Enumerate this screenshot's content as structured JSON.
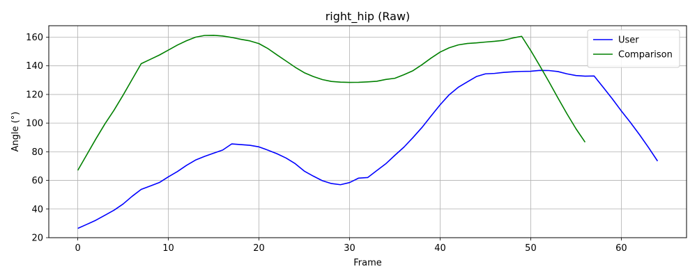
{
  "chart_data": {
    "type": "line",
    "title": "right_hip (Raw)",
    "xlabel": "Frame",
    "ylabel": "Angle (°)",
    "xlim": [
      -3.2,
      67.2
    ],
    "ylim": [
      20,
      168
    ],
    "xticks": [
      0,
      10,
      20,
      30,
      40,
      50,
      60
    ],
    "yticks": [
      20,
      40,
      60,
      80,
      100,
      120,
      140,
      160
    ],
    "grid": true,
    "legend_position": "top-right",
    "series": [
      {
        "name": "User",
        "color": "#0000ff",
        "x": [
          0,
          1,
          2,
          3,
          4,
          5,
          6,
          7,
          8,
          9,
          10,
          11,
          12,
          13,
          14,
          15,
          16,
          17,
          18,
          19,
          20,
          21,
          22,
          23,
          24,
          25,
          26,
          27,
          28,
          29,
          30,
          31,
          32,
          33,
          34,
          35,
          36,
          37,
          38,
          39,
          40,
          41,
          42,
          43,
          44,
          45,
          46,
          47,
          48,
          49,
          50,
          51,
          52,
          53,
          54,
          55,
          56,
          57,
          58,
          59,
          60,
          61,
          62,
          63,
          64
        ],
        "y": [
          26.5,
          29.3,
          32.2,
          35.7,
          39.2,
          43.5,
          48.9,
          53.7,
          56.1,
          58.5,
          62.5,
          66.2,
          70.5,
          74.2,
          76.8,
          79.0,
          81.2,
          85.5,
          85.0,
          84.5,
          83.4,
          81.1,
          78.6,
          75.6,
          71.7,
          66.5,
          63.0,
          59.8,
          57.8,
          57.0,
          58.5,
          61.6,
          62.0,
          66.8,
          71.6,
          77.5,
          83.2,
          89.9,
          97.0,
          105.0,
          112.8,
          119.8,
          125.0,
          128.8,
          132.5,
          134.4,
          134.7,
          135.4,
          135.8,
          136.1,
          136.2,
          136.8,
          136.7,
          136.0,
          134.4,
          133.2,
          132.8,
          132.9,
          125.0,
          117.0,
          108.5,
          100.5,
          92.0,
          83.0,
          73.5
        ]
      },
      {
        "name": "Comparison",
        "color": "#008000",
        "x": [
          0,
          1,
          2,
          3,
          4,
          5,
          6,
          7,
          8,
          9,
          10,
          11,
          12,
          13,
          14,
          15,
          16,
          17,
          18,
          19,
          20,
          21,
          22,
          23,
          24,
          25,
          26,
          27,
          28,
          29,
          30,
          31,
          32,
          33,
          34,
          35,
          36,
          37,
          38,
          39,
          40,
          41,
          42,
          43,
          44,
          45,
          46,
          47,
          48,
          49,
          50,
          51,
          52,
          53,
          54,
          55,
          56
        ],
        "y": [
          67.0,
          78.0,
          89.0,
          99.5,
          109.0,
          119.5,
          130.5,
          141.5,
          144.5,
          147.5,
          151.0,
          154.5,
          157.5,
          160.0,
          161.2,
          161.3,
          160.8,
          159.8,
          158.5,
          157.4,
          155.5,
          152.0,
          147.6,
          143.3,
          139.0,
          135.2,
          132.5,
          130.4,
          129.1,
          128.6,
          128.4,
          128.5,
          128.8,
          129.2,
          130.5,
          131.3,
          133.8,
          136.6,
          140.8,
          145.4,
          149.6,
          152.6,
          154.6,
          155.6,
          156.0,
          156.6,
          157.1,
          157.8,
          159.4,
          160.6,
          150.7,
          140.0,
          129.0,
          117.6,
          106.5,
          96.0,
          86.7
        ]
      }
    ]
  }
}
